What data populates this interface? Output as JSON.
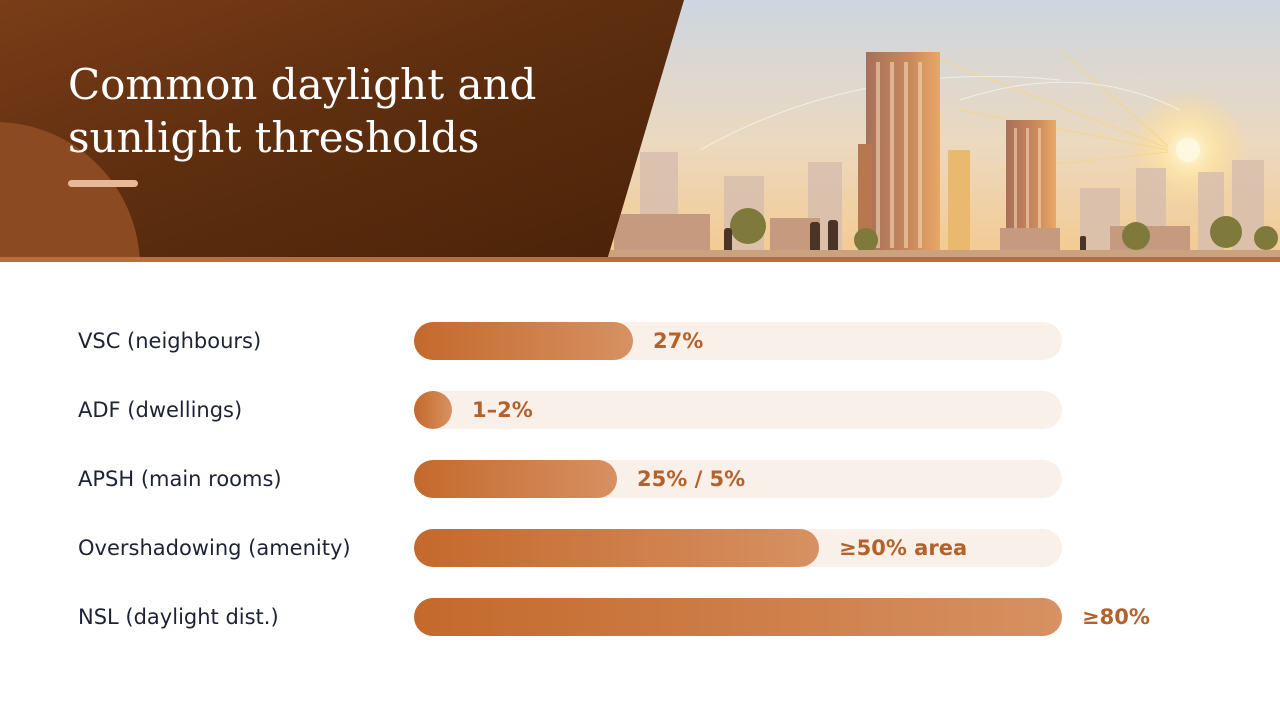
{
  "header": {
    "title": "Common daylight and sunlight thresholds"
  },
  "colors": {
    "header_dark": "#5e2e0f",
    "header_accent": "#8c4a22",
    "bar_fill_start": "#c4692c",
    "bar_fill_end": "#d79162",
    "track": "#faf0ea",
    "value_text": "#b4612a",
    "label_text": "#1e2235"
  },
  "chart_data": {
    "type": "bar",
    "orientation": "horizontal",
    "title": "Common daylight and sunlight thresholds",
    "categories": [
      "VSC (neighbours)",
      "ADF (dwellings)",
      "APSH (main rooms)",
      "Overshadowing (amenity)",
      "NSL (daylight dist.)"
    ],
    "values": [
      27,
      1.5,
      25,
      50,
      80
    ],
    "value_labels": [
      "27%",
      "1–2%",
      "25% / 5%",
      "≥50% area",
      "≥80%"
    ],
    "xlim": [
      0,
      80
    ],
    "unit": "%",
    "grid": false,
    "legend": "none"
  }
}
